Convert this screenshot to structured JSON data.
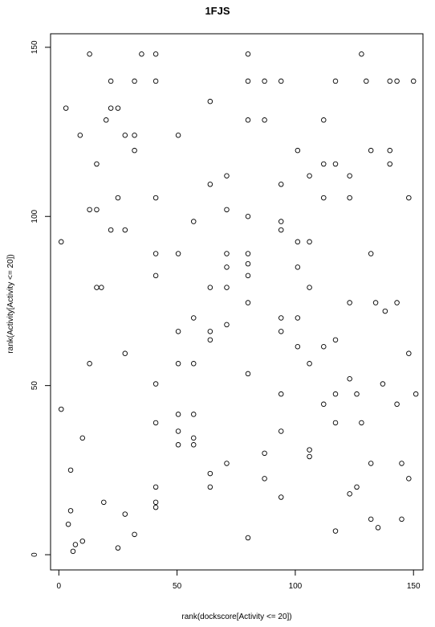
{
  "chart_data": {
    "type": "scatter",
    "title": "1FJS",
    "xlabel": "rank(dockscore[Activity <= 20])",
    "ylabel": "rank(Activity[Activity <= 20])",
    "xlim": [
      -3.5,
      154
    ],
    "ylim": [
      -4.5,
      154
    ],
    "xticks": [
      0,
      50,
      100,
      150
    ],
    "yticks": [
      0,
      50,
      100,
      150
    ],
    "grid": false,
    "points": [
      {
        "x": 1,
        "y": 92.5
      },
      {
        "x": 1,
        "y": 43
      },
      {
        "x": 3,
        "y": 132
      },
      {
        "x": 4,
        "y": 9
      },
      {
        "x": 5,
        "y": 13
      },
      {
        "x": 5,
        "y": 25
      },
      {
        "x": 6,
        "y": 1
      },
      {
        "x": 7,
        "y": 3
      },
      {
        "x": 9,
        "y": 124
      },
      {
        "x": 10,
        "y": 34.5
      },
      {
        "x": 10,
        "y": 4
      },
      {
        "x": 13,
        "y": 148
      },
      {
        "x": 13,
        "y": 102
      },
      {
        "x": 13,
        "y": 56.5
      },
      {
        "x": 16,
        "y": 115.5
      },
      {
        "x": 16,
        "y": 102
      },
      {
        "x": 16,
        "y": 79
      },
      {
        "x": 18,
        "y": 79
      },
      {
        "x": 19,
        "y": 15.5
      },
      {
        "x": 20,
        "y": 128.5
      },
      {
        "x": 22,
        "y": 140
      },
      {
        "x": 22,
        "y": 132
      },
      {
        "x": 22,
        "y": 96
      },
      {
        "x": 25,
        "y": 132
      },
      {
        "x": 25,
        "y": 105.5
      },
      {
        "x": 25,
        "y": 2
      },
      {
        "x": 28,
        "y": 124
      },
      {
        "x": 28,
        "y": 96
      },
      {
        "x": 28,
        "y": 59.5
      },
      {
        "x": 28,
        "y": 12
      },
      {
        "x": 32,
        "y": 140
      },
      {
        "x": 32,
        "y": 124
      },
      {
        "x": 32,
        "y": 119.5
      },
      {
        "x": 32,
        "y": 6
      },
      {
        "x": 35,
        "y": 148
      },
      {
        "x": 41,
        "y": 148
      },
      {
        "x": 41,
        "y": 140
      },
      {
        "x": 41,
        "y": 105.5
      },
      {
        "x": 41,
        "y": 89
      },
      {
        "x": 41,
        "y": 82.5
      },
      {
        "x": 41,
        "y": 50.5
      },
      {
        "x": 41,
        "y": 39
      },
      {
        "x": 41,
        "y": 20
      },
      {
        "x": 41,
        "y": 15.5
      },
      {
        "x": 41,
        "y": 14
      },
      {
        "x": 50.5,
        "y": 124
      },
      {
        "x": 50.5,
        "y": 89
      },
      {
        "x": 50.5,
        "y": 66
      },
      {
        "x": 50.5,
        "y": 56.5
      },
      {
        "x": 50.5,
        "y": 41.5
      },
      {
        "x": 50.5,
        "y": 36.5
      },
      {
        "x": 50.5,
        "y": 32.5
      },
      {
        "x": 57,
        "y": 98.5
      },
      {
        "x": 57,
        "y": 70
      },
      {
        "x": 57,
        "y": 56.5
      },
      {
        "x": 57,
        "y": 41.5
      },
      {
        "x": 57,
        "y": 34.5
      },
      {
        "x": 57,
        "y": 32.5
      },
      {
        "x": 64,
        "y": 134
      },
      {
        "x": 64,
        "y": 109.5
      },
      {
        "x": 64,
        "y": 79
      },
      {
        "x": 64,
        "y": 66
      },
      {
        "x": 64,
        "y": 63.5
      },
      {
        "x": 64,
        "y": 24
      },
      {
        "x": 64,
        "y": 20
      },
      {
        "x": 71,
        "y": 112
      },
      {
        "x": 71,
        "y": 102
      },
      {
        "x": 71,
        "y": 89
      },
      {
        "x": 71,
        "y": 85
      },
      {
        "x": 71,
        "y": 79
      },
      {
        "x": 71,
        "y": 68
      },
      {
        "x": 71,
        "y": 27
      },
      {
        "x": 80,
        "y": 148
      },
      {
        "x": 80,
        "y": 140
      },
      {
        "x": 80,
        "y": 128.5
      },
      {
        "x": 80,
        "y": 100
      },
      {
        "x": 80,
        "y": 89
      },
      {
        "x": 80,
        "y": 86
      },
      {
        "x": 80,
        "y": 82.5
      },
      {
        "x": 80,
        "y": 74.5
      },
      {
        "x": 80,
        "y": 53.5
      },
      {
        "x": 80,
        "y": 5
      },
      {
        "x": 87,
        "y": 140
      },
      {
        "x": 87,
        "y": 128.5
      },
      {
        "x": 87,
        "y": 30
      },
      {
        "x": 87,
        "y": 22.5
      },
      {
        "x": 94,
        "y": 140
      },
      {
        "x": 94,
        "y": 109.5
      },
      {
        "x": 94,
        "y": 98.5
      },
      {
        "x": 94,
        "y": 96
      },
      {
        "x": 94,
        "y": 70
      },
      {
        "x": 94,
        "y": 66
      },
      {
        "x": 94,
        "y": 47.5
      },
      {
        "x": 94,
        "y": 36.5
      },
      {
        "x": 94,
        "y": 17
      },
      {
        "x": 101,
        "y": 119.5
      },
      {
        "x": 101,
        "y": 92.5
      },
      {
        "x": 101,
        "y": 85
      },
      {
        "x": 101,
        "y": 70
      },
      {
        "x": 101,
        "y": 61.5
      },
      {
        "x": 106,
        "y": 112
      },
      {
        "x": 106,
        "y": 92.5
      },
      {
        "x": 106,
        "y": 79
      },
      {
        "x": 106,
        "y": 56.5
      },
      {
        "x": 106,
        "y": 31
      },
      {
        "x": 106,
        "y": 29
      },
      {
        "x": 112,
        "y": 128.5
      },
      {
        "x": 112,
        "y": 115.5
      },
      {
        "x": 112,
        "y": 105.5
      },
      {
        "x": 112,
        "y": 61.5
      },
      {
        "x": 112,
        "y": 44.5
      },
      {
        "x": 117,
        "y": 140
      },
      {
        "x": 117,
        "y": 115.5
      },
      {
        "x": 117,
        "y": 63.5
      },
      {
        "x": 117,
        "y": 47.5
      },
      {
        "x": 117,
        "y": 39
      },
      {
        "x": 117,
        "y": 7
      },
      {
        "x": 123,
        "y": 112
      },
      {
        "x": 123,
        "y": 105.5
      },
      {
        "x": 123,
        "y": 74.5
      },
      {
        "x": 123,
        "y": 52
      },
      {
        "x": 123,
        "y": 18
      },
      {
        "x": 126,
        "y": 47.5
      },
      {
        "x": 126,
        "y": 20
      },
      {
        "x": 128,
        "y": 148
      },
      {
        "x": 128,
        "y": 39
      },
      {
        "x": 130,
        "y": 140
      },
      {
        "x": 132,
        "y": 119.5
      },
      {
        "x": 132,
        "y": 89
      },
      {
        "x": 132,
        "y": 27
      },
      {
        "x": 132,
        "y": 10.5
      },
      {
        "x": 134,
        "y": 74.5
      },
      {
        "x": 135,
        "y": 8
      },
      {
        "x": 137,
        "y": 50.5
      },
      {
        "x": 138,
        "y": 72
      },
      {
        "x": 140,
        "y": 140
      },
      {
        "x": 140,
        "y": 119.5
      },
      {
        "x": 140,
        "y": 115.5
      },
      {
        "x": 143,
        "y": 140
      },
      {
        "x": 143,
        "y": 74.5
      },
      {
        "x": 143,
        "y": 44.5
      },
      {
        "x": 145,
        "y": 27
      },
      {
        "x": 145,
        "y": 10.5
      },
      {
        "x": 148,
        "y": 105.5
      },
      {
        "x": 148,
        "y": 59.5
      },
      {
        "x": 148,
        "y": 22.5
      },
      {
        "x": 150,
        "y": 140
      },
      {
        "x": 151,
        "y": 47.5
      }
    ]
  }
}
